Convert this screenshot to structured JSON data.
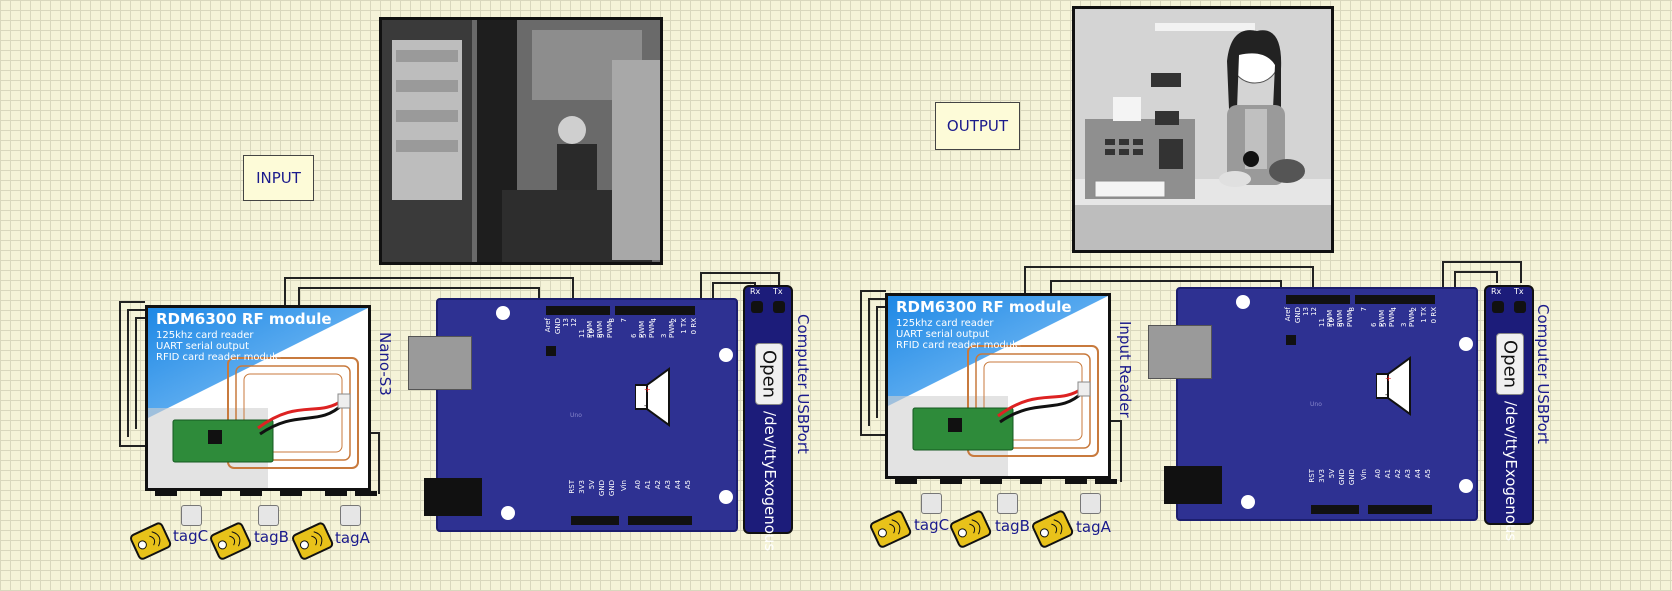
{
  "left": {
    "input_label": "INPUT",
    "board_name": "Nano-S3",
    "rfid": {
      "title": "RDM6300 RF module",
      "line1": "125khz card reader",
      "line2": "UART serial output",
      "line3": "RFID card reader module"
    },
    "usb": {
      "open": "Open",
      "title": "Computer USBPort",
      "path": "/dev/ttyExogenous"
    },
    "tags": [
      "tagC",
      "tagB",
      "tagA"
    ]
  },
  "right": {
    "output_label": "OUTPUT",
    "reader_name": "Input Reader",
    "rfid": {
      "title": "RDM6300 RF module",
      "line1": "125khz card reader",
      "line2": "UART serial output",
      "line3": "RFID card reader module"
    },
    "usb": {
      "open": "Open",
      "title": "Computer USBPort",
      "path": "/dev/ttyExogenous"
    },
    "tags": [
      "tagC",
      "tagB",
      "tagA"
    ]
  },
  "uno_pins_top": [
    "Aref",
    "GND",
    "13",
    "12",
    "11 PWM",
    "10 PWM",
    "9 PWM",
    "8",
    "7",
    "6 PWM",
    "5 PWM",
    "4",
    "3 PWM",
    "2",
    "1 TX",
    "0 RX"
  ],
  "uno_pins_bottom": [
    "RST",
    "3V3",
    "5V",
    "GND",
    "GND",
    "Vin",
    "A0",
    "A1",
    "A2",
    "A3",
    "A4",
    "A5"
  ],
  "uno_logo": "Uno",
  "usb_pins": [
    "Rx",
    "Tx"
  ],
  "colors": {
    "board": "#2e3192",
    "label_text": "#1a1a8c",
    "grid_bg": "#f5f3d8",
    "tag": "#e8c21a"
  }
}
